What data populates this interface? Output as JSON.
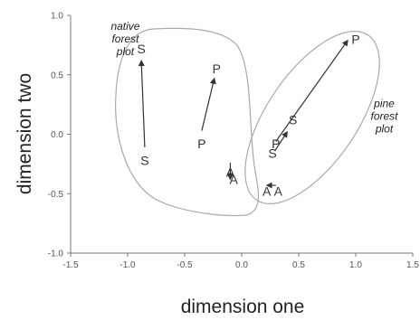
{
  "chart_data": {
    "type": "scatter",
    "title": "",
    "xlabel": "dimension one",
    "ylabel": "dimension two",
    "xlim": [
      -1.5,
      1.5
    ],
    "ylim": [
      -1.0,
      1.0
    ],
    "xticks": [
      "-1.5",
      "-1.0",
      "-0.5",
      "0.0",
      "0.5",
      "1.0",
      "1.5"
    ],
    "yticks": [
      "1.0",
      "0.5",
      "0.0",
      "-0.5",
      "-1.0"
    ],
    "grid": false,
    "points": [
      {
        "label": "S",
        "x": -0.88,
        "y": 0.72
      },
      {
        "label": "S",
        "x": -0.85,
        "y": -0.22
      },
      {
        "label": "P",
        "x": -0.22,
        "y": 0.55
      },
      {
        "label": "P",
        "x": -0.35,
        "y": -0.08
      },
      {
        "label": "A",
        "x": -0.1,
        "y": -0.32
      },
      {
        "label": "A",
        "x": -0.07,
        "y": -0.38
      },
      {
        "label": "P",
        "x": 1.0,
        "y": 0.8
      },
      {
        "label": "S",
        "x": 0.45,
        "y": 0.12
      },
      {
        "label": "P",
        "x": 0.3,
        "y": -0.08
      },
      {
        "label": "S",
        "x": 0.27,
        "y": -0.16
      },
      {
        "label": "A",
        "x": 0.22,
        "y": -0.48
      },
      {
        "label": "A",
        "x": 0.32,
        "y": -0.48
      }
    ],
    "arrows": [
      {
        "from": [
          -0.85,
          -0.11
        ],
        "to": [
          -0.88,
          0.62
        ]
      },
      {
        "from": [
          -0.35,
          0.03
        ],
        "to": [
          -0.24,
          0.47
        ]
      },
      {
        "from": [
          -0.1,
          -0.24
        ],
        "to": [
          -0.1,
          -0.38
        ]
      },
      {
        "from": [
          0.3,
          -0.06
        ],
        "to": [
          0.93,
          0.79
        ]
      },
      {
        "from": [
          0.29,
          -0.14
        ],
        "to": [
          0.4,
          0.02
        ]
      },
      {
        "from": [
          0.3,
          -0.43
        ],
        "to": [
          0.22,
          -0.43
        ]
      }
    ],
    "annotations": [
      {
        "lines": [
          "native",
          "forest",
          "plot"
        ],
        "x": -1.02,
        "y": 0.88
      },
      {
        "lines": [
          "pine",
          "forest",
          "plot"
        ],
        "x": 1.25,
        "y": 0.23
      }
    ]
  }
}
